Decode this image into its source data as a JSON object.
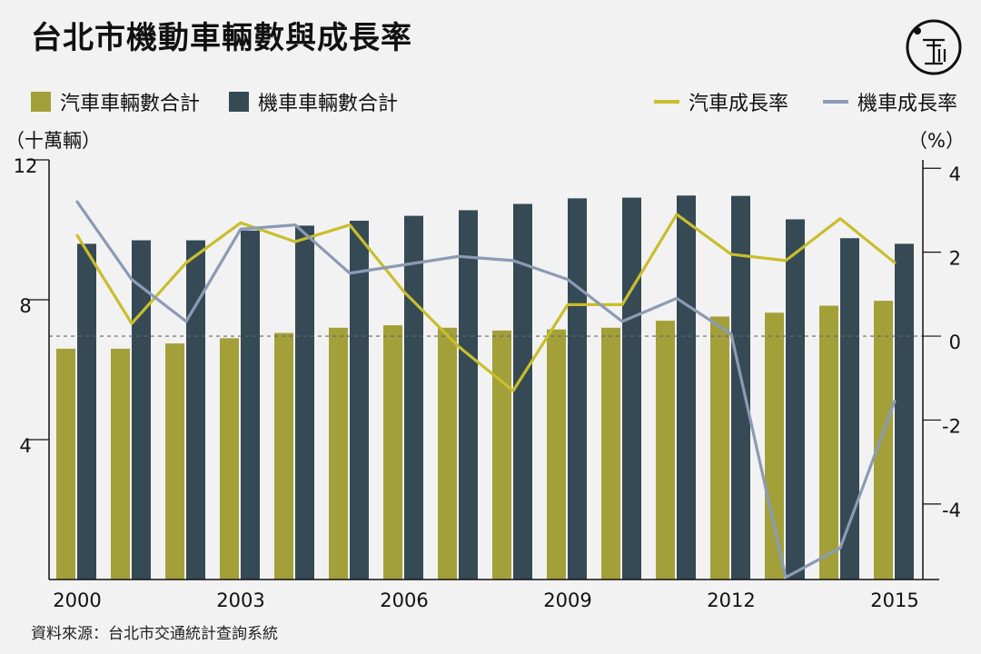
{
  "title": "台北市機動車輛數與成長率",
  "source": "資料來源：台北市交通統計查詢系統",
  "colors": {
    "car": "#a3a03a",
    "moto": "#364a55",
    "car_line": "#c9be2c",
    "moto_line": "#8c9bb4",
    "zero_line": "#666666",
    "axis": "#111111"
  },
  "legend": {
    "car_count": "汽車車輛數合計",
    "moto_count": "機車車輛數合計",
    "car_growth": "汽車成長率",
    "moto_growth": "機車成長率"
  },
  "chart_data": {
    "type": "bar",
    "x": [
      2000,
      2001,
      2002,
      2003,
      2004,
      2005,
      2006,
      2007,
      2008,
      2009,
      2010,
      2011,
      2012,
      2013,
      2014,
      2015
    ],
    "x_tick_labels": [
      "2000",
      "2003",
      "2006",
      "2009",
      "2012",
      "2015"
    ],
    "x_tick_values": [
      2000,
      2003,
      2006,
      2009,
      2012,
      2015
    ],
    "y_left": {
      "label": "（十萬輛）",
      "ylim": [
        0,
        12
      ],
      "ticks": [
        4,
        8,
        12
      ]
    },
    "y_right": {
      "label": "（%）",
      "ylim": [
        -5.8,
        4.2
      ],
      "ticks": [
        -4,
        -2,
        0,
        2,
        4
      ]
    },
    "series": [
      {
        "name": "汽車車輛數合計",
        "kind": "bar",
        "axis": "left",
        "values": [
          6.6,
          6.6,
          6.75,
          6.9,
          7.05,
          7.2,
          7.27,
          7.2,
          7.12,
          7.15,
          7.2,
          7.4,
          7.52,
          7.63,
          7.83,
          7.97
        ]
      },
      {
        "name": "機車車輛數合計",
        "kind": "bar",
        "axis": "left",
        "values": [
          9.6,
          9.7,
          9.7,
          9.98,
          10.12,
          10.26,
          10.4,
          10.56,
          10.74,
          10.9,
          10.92,
          10.98,
          10.97,
          10.3,
          9.76,
          9.6
        ]
      },
      {
        "name": "汽車成長率",
        "kind": "line",
        "axis": "right",
        "values": [
          2.4,
          0.3,
          1.75,
          2.7,
          2.25,
          2.65,
          1.05,
          -0.25,
          -1.3,
          0.75,
          0.75,
          2.9,
          1.95,
          1.8,
          2.8,
          1.75
        ]
      },
      {
        "name": "機車成長率",
        "kind": "line",
        "axis": "right",
        "values": [
          3.2,
          1.35,
          0.35,
          2.55,
          2.65,
          1.5,
          1.7,
          1.9,
          1.8,
          1.35,
          0.35,
          0.9,
          0.05,
          -5.75,
          -5.05,
          -1.55
        ]
      }
    ],
    "zero_line": "dashed",
    "grid": false
  }
}
